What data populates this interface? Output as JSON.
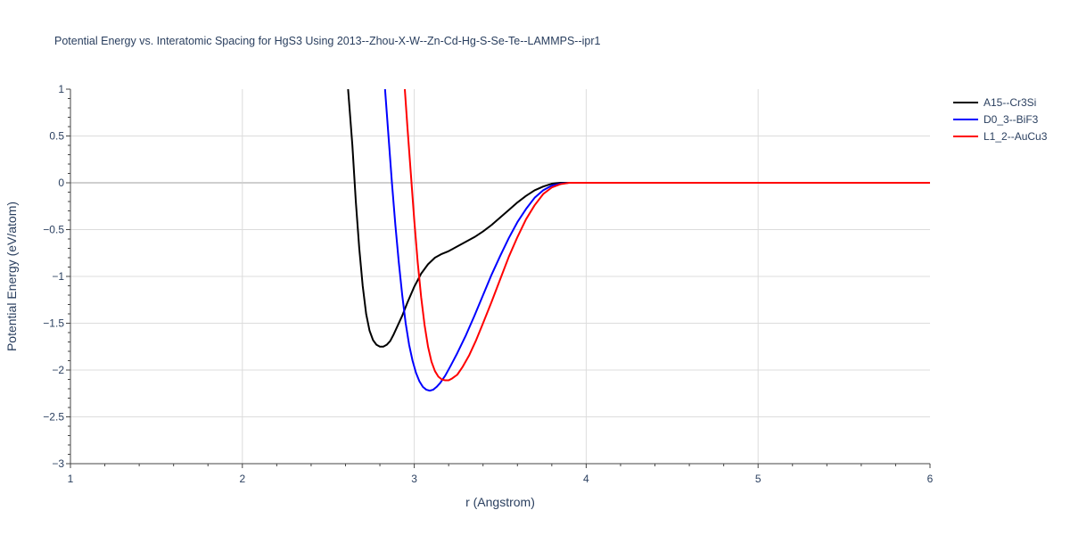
{
  "chart_data": {
    "type": "line",
    "title": "Potential Energy vs. Interatomic Spacing for HgS3 Using 2013--Zhou-X-W--Zn-Cd-Hg-S-Se-Te--LAMMPS--ipr1",
    "xlabel": "r (Angstrom)",
    "ylabel": "Potential Energy (eV/atom)",
    "xlim": [
      1,
      6
    ],
    "ylim": [
      -3,
      1
    ],
    "x_ticks": [
      "1",
      "2",
      "3",
      "4",
      "5",
      "6"
    ],
    "y_ticks": [
      "1",
      "0.5",
      "0",
      "−0.5",
      "−1",
      "−1.5",
      "−2",
      "−2.5",
      "−3"
    ],
    "grid": true,
    "legend_position": "top-right",
    "series": [
      {
        "name": "A15--Cr3Si",
        "color": "#000000",
        "points": [
          [
            2.615,
            1.0
          ],
          [
            2.64,
            0.4
          ],
          [
            2.66,
            -0.2
          ],
          [
            2.68,
            -0.7
          ],
          [
            2.7,
            -1.1
          ],
          [
            2.72,
            -1.4
          ],
          [
            2.74,
            -1.58
          ],
          [
            2.76,
            -1.68
          ],
          [
            2.78,
            -1.73
          ],
          [
            2.8,
            -1.75
          ],
          [
            2.82,
            -1.75
          ],
          [
            2.84,
            -1.73
          ],
          [
            2.86,
            -1.69
          ],
          [
            2.88,
            -1.62
          ],
          [
            2.9,
            -1.54
          ],
          [
            2.93,
            -1.42
          ],
          [
            2.96,
            -1.28
          ],
          [
            3.0,
            -1.11
          ],
          [
            3.04,
            -0.97
          ],
          [
            3.08,
            -0.87
          ],
          [
            3.12,
            -0.8
          ],
          [
            3.16,
            -0.76
          ],
          [
            3.2,
            -0.73
          ],
          [
            3.25,
            -0.68
          ],
          [
            3.3,
            -0.63
          ],
          [
            3.35,
            -0.58
          ],
          [
            3.4,
            -0.52
          ],
          [
            3.45,
            -0.45
          ],
          [
            3.5,
            -0.37
          ],
          [
            3.55,
            -0.29
          ],
          [
            3.6,
            -0.21
          ],
          [
            3.65,
            -0.14
          ],
          [
            3.7,
            -0.08
          ],
          [
            3.75,
            -0.04
          ],
          [
            3.8,
            -0.01
          ],
          [
            3.85,
            0.0
          ],
          [
            4.0,
            0.0
          ],
          [
            5.0,
            0.0
          ],
          [
            6.0,
            0.0
          ]
        ]
      },
      {
        "name": "D0_3--BiF3",
        "color": "#0000ff",
        "points": [
          [
            2.83,
            1.0
          ],
          [
            2.85,
            0.5
          ],
          [
            2.87,
            0.0
          ],
          [
            2.89,
            -0.45
          ],
          [
            2.91,
            -0.85
          ],
          [
            2.93,
            -1.2
          ],
          [
            2.95,
            -1.5
          ],
          [
            2.97,
            -1.73
          ],
          [
            2.99,
            -1.9
          ],
          [
            3.01,
            -2.03
          ],
          [
            3.03,
            -2.12
          ],
          [
            3.05,
            -2.18
          ],
          [
            3.07,
            -2.21
          ],
          [
            3.09,
            -2.22
          ],
          [
            3.11,
            -2.21
          ],
          [
            3.13,
            -2.18
          ],
          [
            3.15,
            -2.14
          ],
          [
            3.18,
            -2.06
          ],
          [
            3.21,
            -1.96
          ],
          [
            3.25,
            -1.82
          ],
          [
            3.3,
            -1.63
          ],
          [
            3.35,
            -1.42
          ],
          [
            3.4,
            -1.2
          ],
          [
            3.45,
            -0.98
          ],
          [
            3.5,
            -0.78
          ],
          [
            3.55,
            -0.59
          ],
          [
            3.6,
            -0.42
          ],
          [
            3.65,
            -0.28
          ],
          [
            3.7,
            -0.16
          ],
          [
            3.75,
            -0.08
          ],
          [
            3.8,
            -0.03
          ],
          [
            3.85,
            -0.01
          ],
          [
            3.9,
            0.0
          ],
          [
            4.0,
            0.0
          ],
          [
            5.0,
            0.0
          ],
          [
            6.0,
            0.0
          ]
        ]
      },
      {
        "name": "L1_2--AuCu3",
        "color": "#ff0000",
        "points": [
          [
            2.945,
            1.0
          ],
          [
            2.96,
            0.6
          ],
          [
            2.98,
            0.1
          ],
          [
            3.0,
            -0.4
          ],
          [
            3.02,
            -0.85
          ],
          [
            3.04,
            -1.22
          ],
          [
            3.06,
            -1.52
          ],
          [
            3.08,
            -1.75
          ],
          [
            3.1,
            -1.91
          ],
          [
            3.12,
            -2.01
          ],
          [
            3.14,
            -2.07
          ],
          [
            3.16,
            -2.1
          ],
          [
            3.18,
            -2.11
          ],
          [
            3.2,
            -2.11
          ],
          [
            3.22,
            -2.09
          ],
          [
            3.25,
            -2.05
          ],
          [
            3.28,
            -1.97
          ],
          [
            3.32,
            -1.84
          ],
          [
            3.36,
            -1.68
          ],
          [
            3.4,
            -1.5
          ],
          [
            3.45,
            -1.27
          ],
          [
            3.5,
            -1.03
          ],
          [
            3.55,
            -0.79
          ],
          [
            3.6,
            -0.58
          ],
          [
            3.65,
            -0.39
          ],
          [
            3.7,
            -0.24
          ],
          [
            3.75,
            -0.12
          ],
          [
            3.8,
            -0.05
          ],
          [
            3.85,
            -0.015
          ],
          [
            3.9,
            0.0
          ],
          [
            4.0,
            0.0
          ],
          [
            5.0,
            0.0
          ],
          [
            6.0,
            0.0
          ]
        ]
      }
    ]
  }
}
